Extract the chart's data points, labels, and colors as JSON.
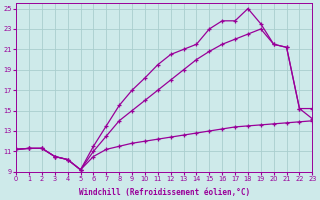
{
  "xlabel": "Windchill (Refroidissement éolien,°C)",
  "bg_color": "#ceeaea",
  "grid_color": "#aacece",
  "line_color": "#990099",
  "xlim": [
    0,
    23
  ],
  "ylim": [
    9,
    25.5
  ],
  "xticks": [
    0,
    1,
    2,
    3,
    4,
    5,
    6,
    7,
    8,
    9,
    10,
    11,
    12,
    13,
    14,
    15,
    16,
    17,
    18,
    19,
    20,
    21,
    22,
    23
  ],
  "yticks": [
    9,
    11,
    13,
    15,
    17,
    19,
    21,
    23,
    25
  ],
  "curve1_x": [
    0,
    1,
    2,
    3,
    4,
    5,
    6,
    7,
    8,
    9,
    10,
    11,
    12,
    13,
    14,
    15,
    16,
    17,
    18,
    19,
    20,
    21,
    22,
    23
  ],
  "curve1_y": [
    11.2,
    11.3,
    11.3,
    10.5,
    10.2,
    9.2,
    11.5,
    13.5,
    15.5,
    17.0,
    18.2,
    19.5,
    20.5,
    21.0,
    21.5,
    23.0,
    23.8,
    23.8,
    25.0,
    23.5,
    21.5,
    21.2,
    15.2,
    15.2
  ],
  "curve2_x": [
    0,
    1,
    2,
    3,
    4,
    5,
    6,
    7,
    8,
    9,
    10,
    11,
    12,
    13,
    14,
    15,
    16,
    17,
    18,
    19,
    20,
    21,
    22,
    23
  ],
  "curve2_y": [
    11.2,
    11.3,
    11.3,
    10.5,
    10.2,
    9.2,
    11.0,
    12.5,
    14.0,
    15.0,
    16.0,
    17.0,
    18.0,
    19.0,
    20.0,
    20.8,
    21.5,
    22.0,
    22.5,
    23.0,
    21.5,
    21.2,
    15.2,
    14.2
  ],
  "curve3_x": [
    0,
    1,
    2,
    3,
    4,
    5,
    6,
    7,
    8,
    9,
    10,
    11,
    12,
    13,
    14,
    15,
    16,
    17,
    18,
    19,
    20,
    21,
    22,
    23
  ],
  "curve3_y": [
    11.2,
    11.3,
    11.3,
    10.5,
    10.2,
    9.2,
    10.5,
    11.2,
    11.5,
    11.8,
    12.0,
    12.2,
    12.4,
    12.6,
    12.8,
    13.0,
    13.2,
    13.4,
    13.5,
    13.6,
    13.7,
    13.8,
    13.9,
    14.0
  ]
}
